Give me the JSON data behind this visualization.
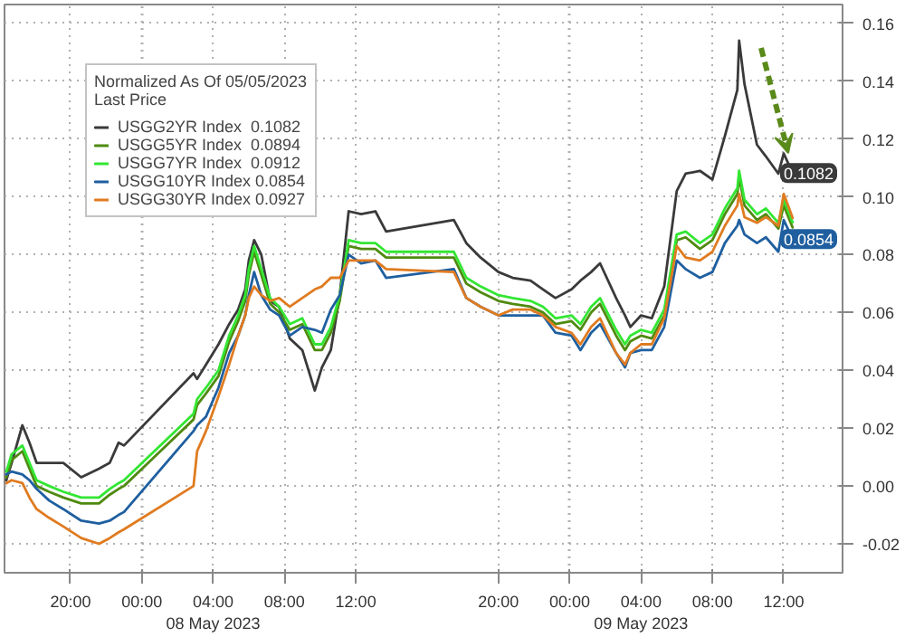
{
  "chart_data": {
    "type": "line",
    "legend_title": "Normalized As Of 05/05/2023\nLast Price",
    "x": [
      "2023-05-07T16:24",
      "2023-05-07T16:42",
      "2023-05-07T17:18",
      "2023-05-07T17:42",
      "2023-05-07T18:06",
      "2023-05-07T18:48",
      "2023-05-07T19:36",
      "2023-05-07T20:36",
      "2023-05-07T21:36",
      "2023-05-07T22:12",
      "2023-05-07T22:42",
      "2023-05-07T23:00",
      "2023-05-08T02:54",
      "2023-05-08T03:06",
      "2023-05-08T03:36",
      "2023-05-08T04:18",
      "2023-05-08T04:54",
      "2023-05-08T05:24",
      "2023-05-08T05:48",
      "2023-05-08T06:00",
      "2023-05-08T06:18",
      "2023-05-08T06:42",
      "2023-05-08T07:12",
      "2023-05-08T07:42",
      "2023-05-08T08:18",
      "2023-05-08T09:00",
      "2023-05-08T09:42",
      "2023-05-08T10:06",
      "2023-05-08T10:36",
      "2023-05-08T11:06",
      "2023-05-08T11:36",
      "2023-05-08T12:18",
      "2023-05-08T13:06",
      "2023-05-08T13:42",
      "2023-05-08T17:30",
      "2023-05-08T18:12",
      "2023-05-08T19:00",
      "2023-05-08T20:00",
      "2023-05-08T20:48",
      "2023-05-08T21:48",
      "2023-05-08T22:30",
      "2023-05-08T23:12",
      "2023-05-09T00:06",
      "2023-05-09T00:36",
      "2023-05-09T01:12",
      "2023-05-09T01:42",
      "2023-05-09T02:36",
      "2023-05-09T03:06",
      "2023-05-09T03:24",
      "2023-05-09T04:00",
      "2023-05-09T04:36",
      "2023-05-09T05:18",
      "2023-05-09T06:00",
      "2023-05-09T06:30",
      "2023-05-09T07:18",
      "2023-05-09T08:00",
      "2023-05-09T08:42",
      "2023-05-09T09:24",
      "2023-05-09T09:30",
      "2023-05-09T09:48",
      "2023-05-09T10:30",
      "2023-05-09T11:00",
      "2023-05-09T11:42",
      "2023-05-09T12:00",
      "2023-05-09T12:30"
    ],
    "series": [
      {
        "name": "USGG2YR Index  0.1082",
        "color": "#3a3a3a",
        "values": [
          0.002,
          0.008,
          0.021,
          0.015,
          0.008,
          0.008,
          0.008,
          0.003,
          0.006,
          0.008,
          0.015,
          0.014,
          0.039,
          0.037,
          0.042,
          0.049,
          0.056,
          0.061,
          0.068,
          0.078,
          0.085,
          0.08,
          0.064,
          0.062,
          0.051,
          0.047,
          0.033,
          0.041,
          0.047,
          0.066,
          0.095,
          0.094,
          0.095,
          0.088,
          0.092,
          0.084,
          0.079,
          0.074,
          0.072,
          0.071,
          0.068,
          0.065,
          0.068,
          0.071,
          0.074,
          0.077,
          0.065,
          0.059,
          0.055,
          0.059,
          0.058,
          0.069,
          0.102,
          0.108,
          0.109,
          0.106,
          0.121,
          0.137,
          0.154,
          0.139,
          0.118,
          0.114,
          0.108,
          0.115,
          0.1082
        ]
      },
      {
        "name": "USGG5YR Index  0.0894",
        "color": "#4f8a10",
        "values": [
          0.003,
          0.009,
          0.012,
          0.006,
          0.0,
          -0.002,
          -0.004,
          -0.006,
          -0.006,
          -0.003,
          -0.001,
          0.0,
          0.023,
          0.028,
          0.032,
          0.038,
          0.05,
          0.057,
          0.064,
          0.073,
          0.081,
          0.073,
          0.063,
          0.06,
          0.054,
          0.056,
          0.047,
          0.047,
          0.053,
          0.064,
          0.083,
          0.082,
          0.082,
          0.079,
          0.079,
          0.07,
          0.067,
          0.064,
          0.063,
          0.062,
          0.06,
          0.056,
          0.057,
          0.054,
          0.06,
          0.063,
          0.052,
          0.047,
          0.05,
          0.052,
          0.051,
          0.059,
          0.085,
          0.086,
          0.082,
          0.085,
          0.094,
          0.101,
          0.107,
          0.097,
          0.092,
          0.094,
          0.089,
          0.097,
          0.0894
        ]
      },
      {
        "name": "USGG7YR Index  0.0912",
        "color": "#33e633",
        "values": [
          0.005,
          0.011,
          0.014,
          0.008,
          0.002,
          0.0,
          -0.002,
          -0.004,
          -0.004,
          -0.001,
          0.001,
          0.002,
          0.025,
          0.03,
          0.034,
          0.04,
          0.052,
          0.059,
          0.066,
          0.075,
          0.083,
          0.075,
          0.065,
          0.062,
          0.056,
          0.058,
          0.049,
          0.049,
          0.055,
          0.066,
          0.085,
          0.084,
          0.084,
          0.081,
          0.081,
          0.072,
          0.069,
          0.066,
          0.065,
          0.064,
          0.062,
          0.058,
          0.059,
          0.056,
          0.062,
          0.065,
          0.054,
          0.049,
          0.052,
          0.054,
          0.053,
          0.061,
          0.087,
          0.088,
          0.084,
          0.087,
          0.096,
          0.103,
          0.109,
          0.099,
          0.094,
          0.096,
          0.091,
          0.099,
          0.0912
        ]
      },
      {
        "name": "USGG10YR Index 0.0854",
        "color": "#1f5fa0",
        "values": [
          0.004,
          0.005,
          0.004,
          0.002,
          -0.001,
          -0.005,
          -0.008,
          -0.012,
          -0.013,
          -0.012,
          -0.01,
          -0.009,
          0.019,
          0.021,
          0.024,
          0.034,
          0.046,
          0.052,
          0.059,
          0.066,
          0.074,
          0.066,
          0.061,
          0.059,
          0.052,
          0.055,
          0.054,
          0.053,
          0.061,
          0.066,
          0.08,
          0.077,
          0.078,
          0.072,
          0.075,
          0.065,
          0.062,
          0.059,
          0.059,
          0.059,
          0.059,
          0.053,
          0.052,
          0.047,
          0.053,
          0.056,
          0.046,
          0.041,
          0.046,
          0.047,
          0.047,
          0.055,
          0.078,
          0.075,
          0.072,
          0.074,
          0.084,
          0.09,
          0.092,
          0.087,
          0.084,
          0.086,
          0.081,
          0.092,
          0.0854
        ]
      },
      {
        "name": "USGG30YR Index 0.0927",
        "color": "#e07b20",
        "values": [
          0.001,
          0.002,
          0.001,
          -0.004,
          -0.008,
          -0.011,
          -0.014,
          -0.018,
          -0.02,
          -0.018,
          -0.016,
          -0.015,
          0.0,
          0.012,
          0.019,
          0.031,
          0.042,
          0.052,
          0.059,
          0.065,
          0.069,
          0.066,
          0.064,
          0.065,
          0.062,
          0.065,
          0.068,
          0.069,
          0.072,
          0.072,
          0.078,
          0.078,
          0.078,
          0.075,
          0.074,
          0.065,
          0.062,
          0.059,
          0.061,
          0.061,
          0.059,
          0.055,
          0.053,
          0.049,
          0.055,
          0.058,
          0.046,
          0.042,
          0.046,
          0.049,
          0.049,
          0.058,
          0.083,
          0.079,
          0.078,
          0.081,
          0.09,
          0.097,
          0.101,
          0.093,
          0.091,
          0.093,
          0.09,
          0.101,
          0.0927
        ]
      }
    ],
    "xlim": [
      "2023-05-07T16:18",
      "2023-05-09T15:18"
    ],
    "xticks": [
      {
        "value": "2023-05-07T20:00",
        "label": "20:00"
      },
      {
        "value": "2023-05-08T00:00",
        "label": "00:00"
      },
      {
        "value": "2023-05-08T04:00",
        "label": "04:00\n08 May 2023"
      },
      {
        "value": "2023-05-08T08:00",
        "label": "08:00"
      },
      {
        "value": "2023-05-08T12:00",
        "label": "12:00"
      },
      {
        "value": "2023-05-08T20:00",
        "label": "20:00"
      },
      {
        "value": "2023-05-09T00:00",
        "label": "00:00"
      },
      {
        "value": "2023-05-09T04:00",
        "label": "04:00\n09 May 2023"
      },
      {
        "value": "2023-05-09T08:00",
        "label": "08:00"
      },
      {
        "value": "2023-05-09T12:00",
        "label": "12:00"
      }
    ],
    "ylim": [
      -0.03,
      0.1665
    ],
    "yticks": [
      {
        "value": -0.02,
        "label": "-0.02"
      },
      {
        "value": 0,
        "label": "0.00"
      },
      {
        "value": 0.02,
        "label": "0.02"
      },
      {
        "value": 0.04,
        "label": "0.04"
      },
      {
        "value": 0.06,
        "label": "0.06"
      },
      {
        "value": 0.08,
        "label": "0.08"
      },
      {
        "value": 0.1,
        "label": "0.10"
      },
      {
        "value": 0.12,
        "label": "0.12"
      },
      {
        "value": 0.14,
        "label": "0.14"
      },
      {
        "value": 0.16,
        "label": "0.16"
      }
    ],
    "annotations": [
      {
        "text": "0.1082",
        "y": 0.1082
      },
      {
        "text": "0.0854",
        "y": 0.0854
      }
    ],
    "grid": true,
    "legend": "top left",
    "marker": "none",
    "line_style": "solid"
  }
}
